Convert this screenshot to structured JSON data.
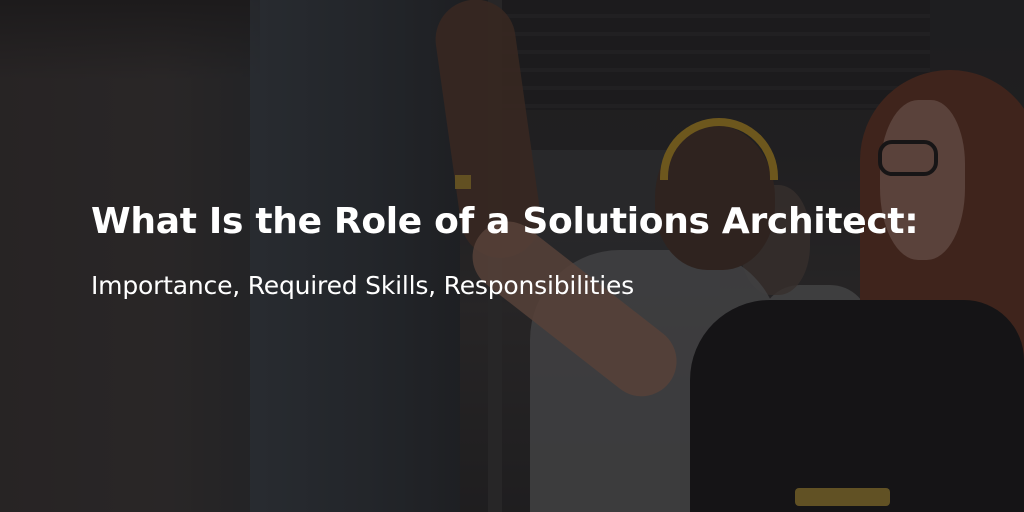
{
  "banner": {
    "headline": "What Is the Role of a Solutions Architect:",
    "subheadline": "Importance, Required Skills, Responsibilities"
  },
  "colors": {
    "text": "#ffffff",
    "overlay": "#141316",
    "beanie_accent": "#c79a25",
    "hair": "#6b3522"
  }
}
